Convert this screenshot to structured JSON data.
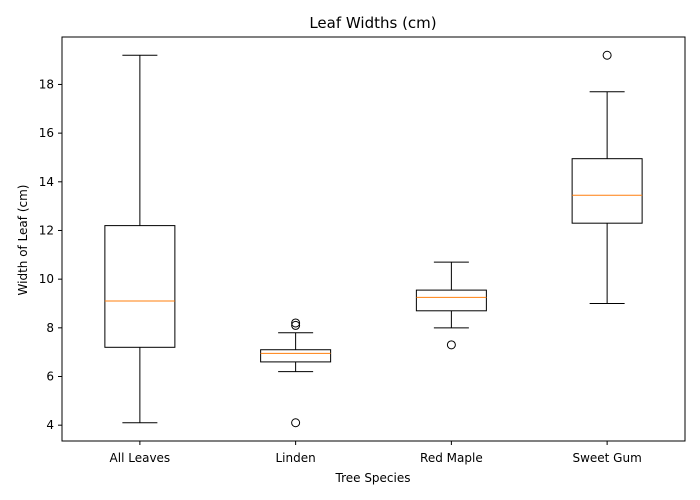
{
  "chart_data": {
    "type": "box",
    "title": "Leaf Widths (cm)",
    "xlabel": "Tree Species",
    "ylabel": "Width of Leaf (cm)",
    "ylim": [
      3.35,
      19.95
    ],
    "yticks": [
      4,
      6,
      8,
      10,
      12,
      14,
      16,
      18
    ],
    "grid": false,
    "categories": [
      "All Leaves",
      "Linden",
      "Red Maple",
      "Sweet Gum"
    ],
    "boxes": [
      {
        "category": "All Leaves",
        "whisker_low": 4.1,
        "q1": 7.2,
        "median": 9.1,
        "q3": 12.2,
        "whisker_high": 19.2,
        "outliers": []
      },
      {
        "category": "Linden",
        "whisker_low": 6.2,
        "q1": 6.6,
        "median": 6.95,
        "q3": 7.1,
        "whisker_high": 7.8,
        "outliers": [
          8.1,
          8.2,
          4.1
        ]
      },
      {
        "category": "Red Maple",
        "whisker_low": 8.0,
        "q1": 8.7,
        "median": 9.25,
        "q3": 9.55,
        "whisker_high": 10.7,
        "outliers": [
          7.3
        ]
      },
      {
        "category": "Sweet Gum",
        "whisker_low": 9.0,
        "q1": 12.3,
        "median": 13.45,
        "q3": 14.95,
        "whisker_high": 17.7,
        "outliers": [
          19.2
        ]
      }
    ],
    "colors": {
      "box": "#000000",
      "median": "#ff7f0e",
      "outlier": "#000000"
    }
  }
}
